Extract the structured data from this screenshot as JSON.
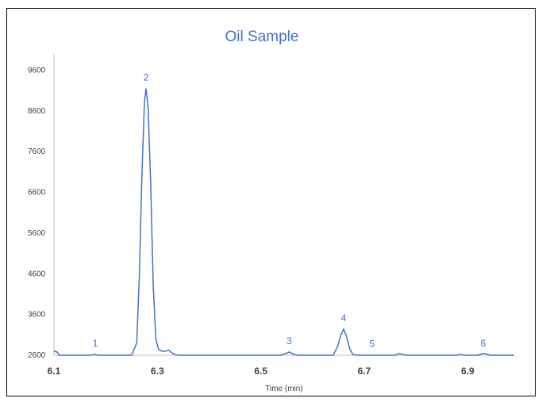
{
  "chart_data": {
    "type": "line",
    "title": "Oil Sample",
    "xlabel": "Time (min)",
    "ylabel": "",
    "xlim": [
      6.1,
      6.99
    ],
    "ylim": [
      2600,
      10000
    ],
    "x_ticks": [
      "6.1",
      "6.3",
      "6.5",
      "6.7",
      "6.9"
    ],
    "y_ticks": [
      "2600",
      "3600",
      "4600",
      "5600",
      "6600",
      "7600",
      "8600",
      "9600"
    ],
    "grid": false,
    "series_color": "#4472c4",
    "peaks": [
      {
        "label": "1",
        "x": 6.18,
        "y": 2620
      },
      {
        "label": "2",
        "x": 6.278,
        "y": 9150
      },
      {
        "label": "3",
        "x": 6.555,
        "y": 2680
      },
      {
        "label": "4",
        "x": 6.66,
        "y": 3240
      },
      {
        "label": "5",
        "x": 6.715,
        "y": 2610
      },
      {
        "label": "6",
        "x": 6.93,
        "y": 2620
      }
    ],
    "series": [
      {
        "points": [
          [
            6.1,
            2700
          ],
          [
            6.106,
            2680
          ],
          [
            6.11,
            2600
          ],
          [
            6.17,
            2600
          ],
          [
            6.178,
            2620
          ],
          [
            6.186,
            2600
          ],
          [
            6.25,
            2600
          ],
          [
            6.26,
            2900
          ],
          [
            6.265,
            4500
          ],
          [
            6.27,
            7000
          ],
          [
            6.275,
            8800
          ],
          [
            6.278,
            9150
          ],
          [
            6.282,
            8700
          ],
          [
            6.287,
            6800
          ],
          [
            6.292,
            4300
          ],
          [
            6.297,
            3000
          ],
          [
            6.302,
            2750
          ],
          [
            6.308,
            2700
          ],
          [
            6.315,
            2700
          ],
          [
            6.322,
            2720
          ],
          [
            6.328,
            2660
          ],
          [
            6.335,
            2610
          ],
          [
            6.345,
            2600
          ],
          [
            6.54,
            2600
          ],
          [
            6.548,
            2640
          ],
          [
            6.555,
            2680
          ],
          [
            6.562,
            2630
          ],
          [
            6.57,
            2600
          ],
          [
            6.64,
            2600
          ],
          [
            6.648,
            2800
          ],
          [
            6.655,
            3100
          ],
          [
            6.66,
            3240
          ],
          [
            6.666,
            3050
          ],
          [
            6.672,
            2750
          ],
          [
            6.678,
            2620
          ],
          [
            6.686,
            2600
          ],
          [
            6.76,
            2600
          ],
          [
            6.766,
            2640
          ],
          [
            6.772,
            2630
          ],
          [
            6.78,
            2600
          ],
          [
            6.88,
            2600
          ],
          [
            6.886,
            2620
          ],
          [
            6.893,
            2600
          ],
          [
            6.92,
            2600
          ],
          [
            6.928,
            2640
          ],
          [
            6.936,
            2630
          ],
          [
            6.944,
            2600
          ],
          [
            6.99,
            2600
          ]
        ]
      }
    ]
  }
}
